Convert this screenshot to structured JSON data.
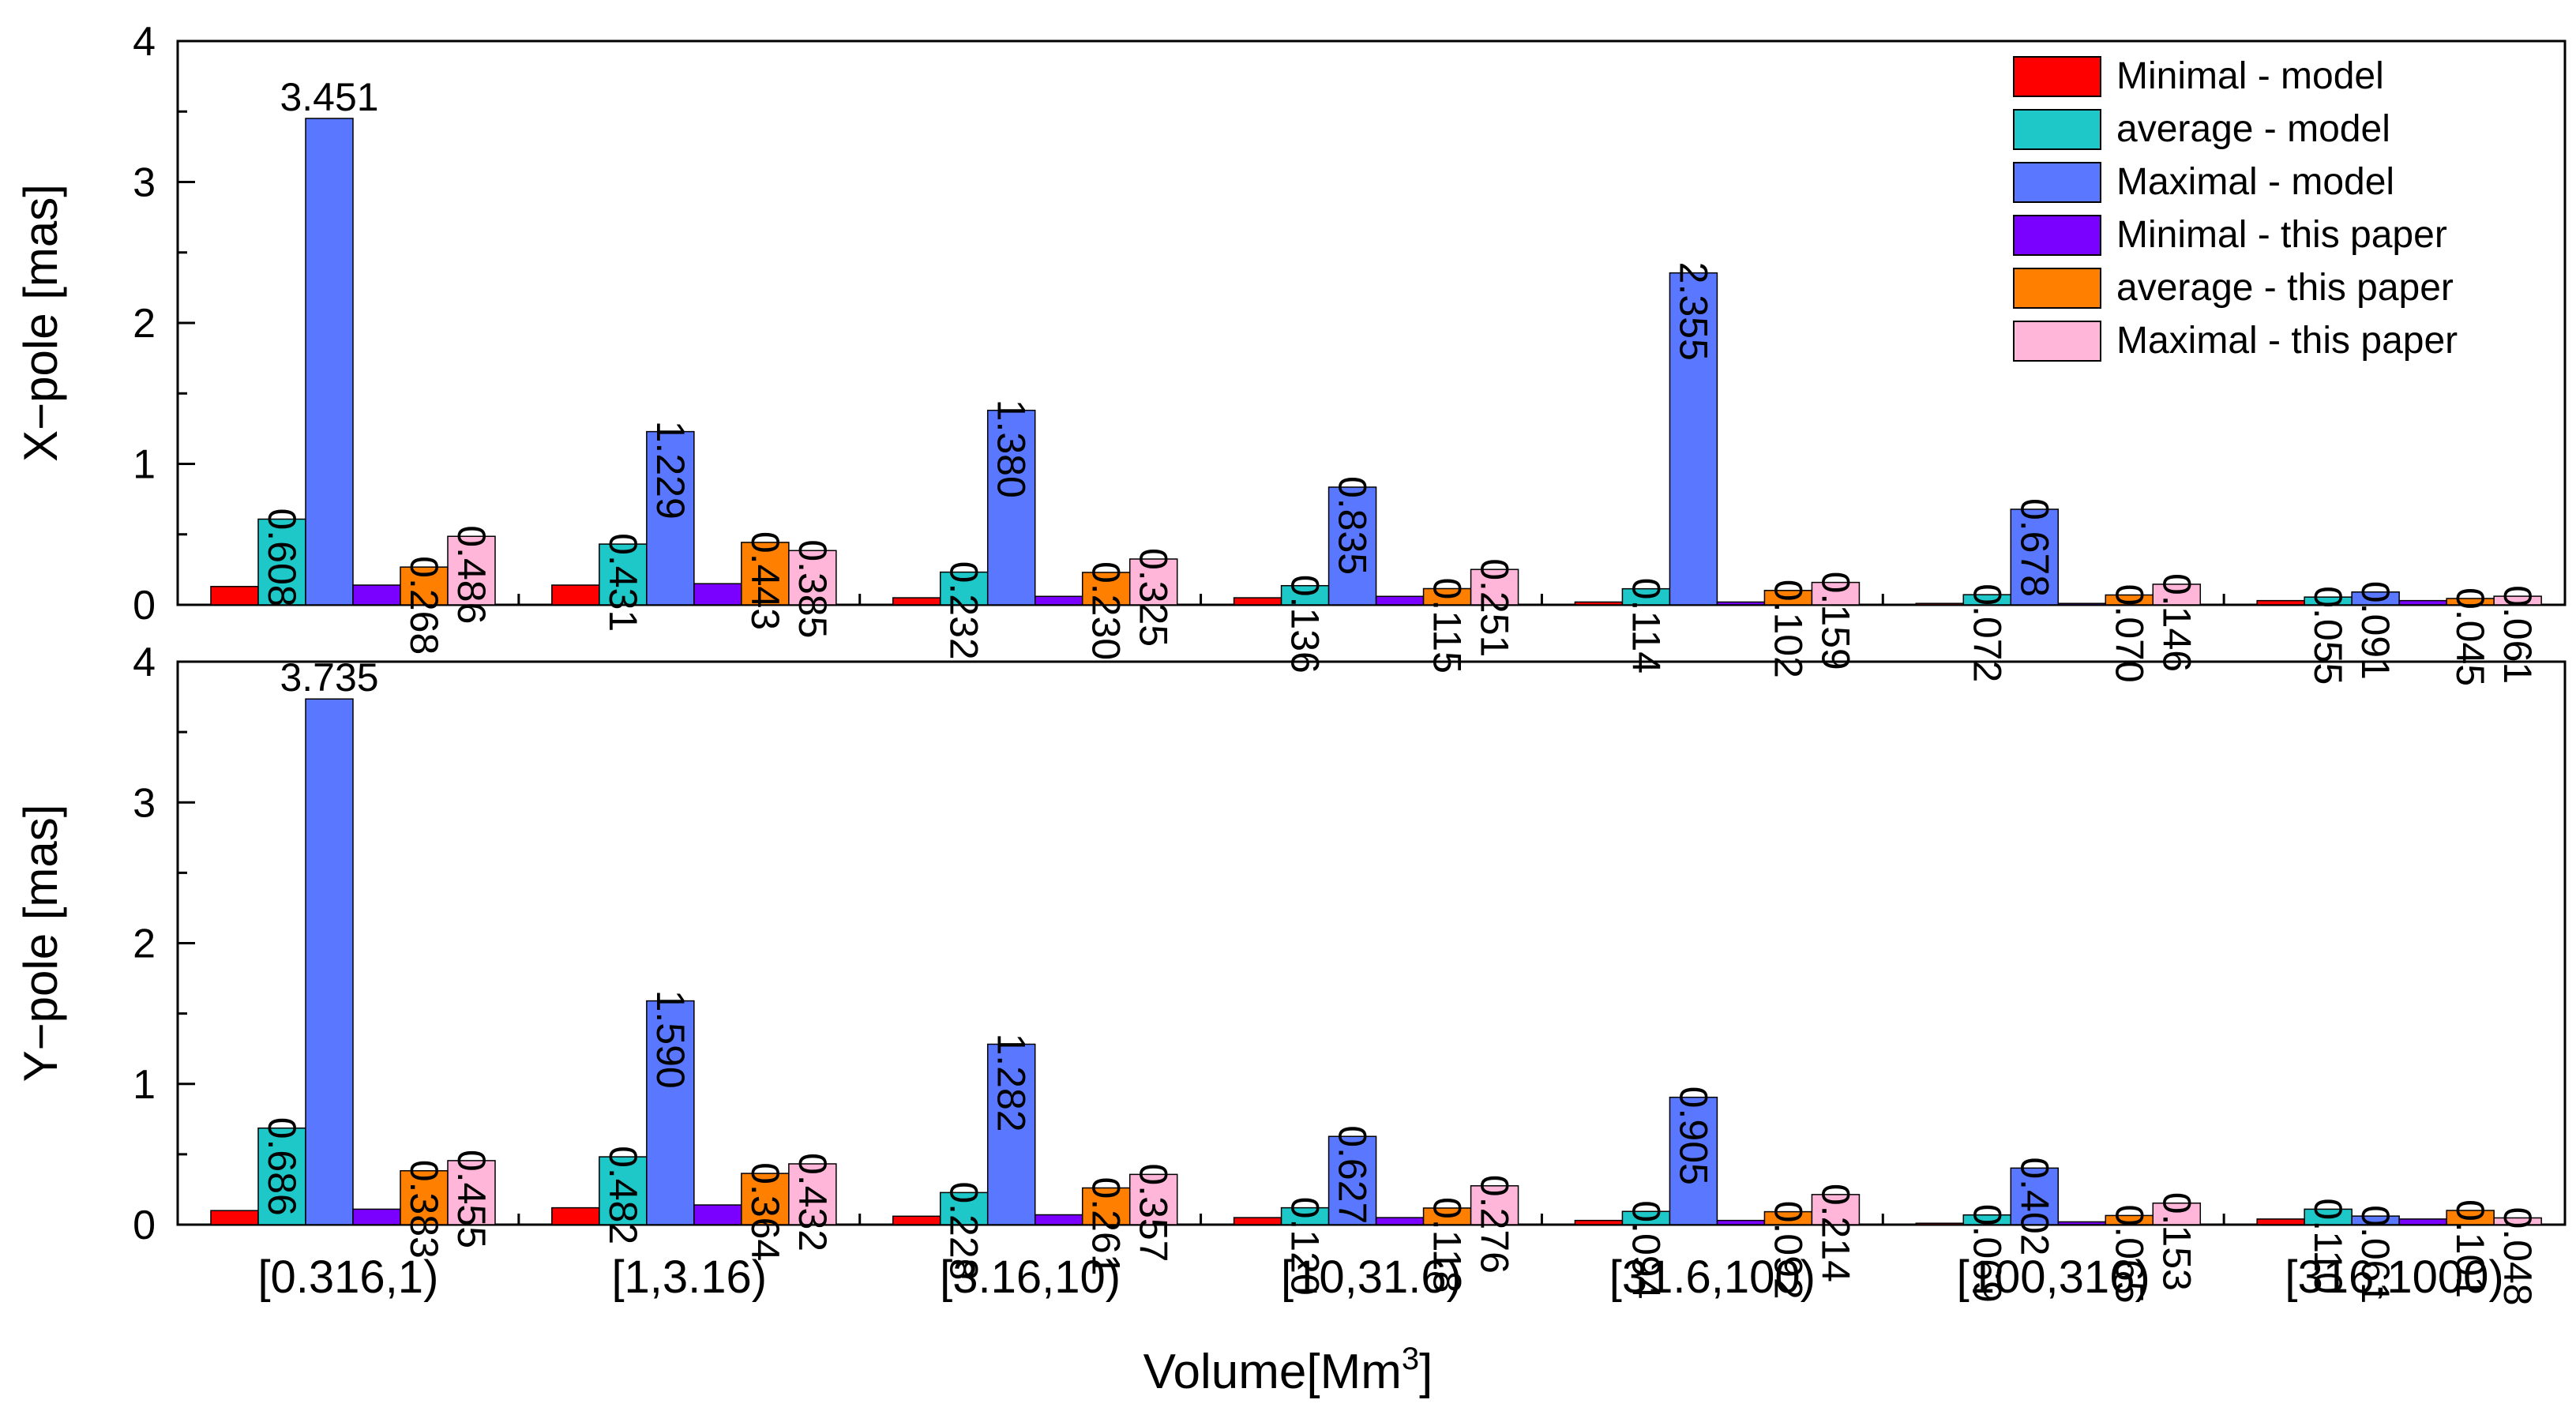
{
  "chart_data": {
    "type": "bar",
    "xlabel": "Volume[Mm",
    "xlabel_sup": "3",
    "xlabel_end": "]",
    "categories": [
      "[0.316,1)",
      "[1,3.16)",
      "[3.16,10)",
      "[10,31.6)",
      "[31.6,100)",
      "[100,316)",
      "[316,1000)"
    ],
    "legend": {
      "placement": "top-right",
      "entries": [
        "Minimal - model",
        "average - model",
        "Maximal - model",
        "Minimal - this paper",
        "average - this paper",
        "Maximal - this paper"
      ],
      "colors": [
        "#ff0000",
        "#1ec8c8",
        "#5a78ff",
        "#7a00ff",
        "#ff8000",
        "#ffb6d8"
      ]
    },
    "panels": [
      {
        "ylabel": "X−pole [mas]",
        "ylim": [
          0,
          4
        ],
        "yticks": [
          "0",
          "1",
          "2",
          "3",
          "4"
        ],
        "series": [
          {
            "name": "Minimal - model",
            "values": [
              0.13,
              0.14,
              0.05,
              0.05,
              0.02,
              0.01,
              0.03
            ]
          },
          {
            "name": "average - model",
            "values": [
              0.608,
              0.431,
              0.232,
              0.136,
              0.114,
              0.072,
              0.055
            ]
          },
          {
            "name": "Maximal - model",
            "values": [
              3.451,
              1.229,
              1.38,
              0.835,
              2.355,
              0.678,
              0.091
            ]
          },
          {
            "name": "Minimal - this paper",
            "values": [
              0.14,
              0.15,
              0.06,
              0.06,
              0.02,
              0.01,
              0.03
            ]
          },
          {
            "name": "average - this paper",
            "values": [
              0.268,
              0.443,
              0.23,
              0.115,
              0.102,
              0.07,
              0.045
            ]
          },
          {
            "name": "Maximal - this paper",
            "values": [
              0.486,
              0.385,
              0.325,
              0.251,
              0.159,
              0.146,
              0.061
            ]
          }
        ],
        "labels": [
          [
            null,
            "0.608",
            "3.451",
            null,
            "0.268",
            "0.486"
          ],
          [
            null,
            "0.431",
            "1.229",
            null,
            "0.443",
            "0.385"
          ],
          [
            null,
            "0.232",
            "1.380",
            null,
            "0.230",
            "0.325"
          ],
          [
            null,
            "0.136",
            "0.835",
            null,
            "0.115",
            "0.251"
          ],
          [
            null,
            "0.114",
            "2.355",
            null,
            "0.102",
            "0.159"
          ],
          [
            null,
            "0.072",
            "0.678",
            null,
            "0.070",
            "0.146"
          ],
          [
            null,
            "0.055",
            "0.091",
            null,
            "0.045",
            "0.061"
          ]
        ]
      },
      {
        "ylabel": "Y−pole [mas]",
        "ylim": [
          0,
          4
        ],
        "yticks": [
          "0",
          "1",
          "2",
          "3",
          "4"
        ],
        "series": [
          {
            "name": "Minimal - model",
            "values": [
              0.1,
              0.12,
              0.06,
              0.05,
              0.03,
              0.01,
              0.04
            ]
          },
          {
            "name": "average - model",
            "values": [
              0.686,
              0.482,
              0.228,
              0.12,
              0.094,
              0.069,
              0.11
            ]
          },
          {
            "name": "Maximal - model",
            "values": [
              3.735,
              1.59,
              1.282,
              0.627,
              0.905,
              0.402,
              0.061
            ]
          },
          {
            "name": "Minimal - this paper",
            "values": [
              0.11,
              0.14,
              0.07,
              0.05,
              0.03,
              0.02,
              0.04
            ]
          },
          {
            "name": "average - this paper",
            "values": [
              0.383,
              0.364,
              0.261,
              0.118,
              0.092,
              0.065,
              0.101
            ]
          },
          {
            "name": "Maximal - this paper",
            "values": [
              0.455,
              0.432,
              0.357,
              0.276,
              0.214,
              0.153,
              0.048
            ]
          }
        ],
        "labels": [
          [
            null,
            "0.686",
            "3.735",
            null,
            "0.383",
            "0.455"
          ],
          [
            null,
            "0.482",
            "1.590",
            null,
            "0.364",
            "0.432"
          ],
          [
            null,
            "0.228",
            "1.282",
            null,
            "0.261",
            "0.357"
          ],
          [
            null,
            "0.120",
            "0.627",
            null,
            "0.118",
            "0.276"
          ],
          [
            null,
            "0.094",
            "0.905",
            null,
            "0.092",
            "0.214"
          ],
          [
            null,
            "0.069",
            "0.402",
            null,
            "0.065",
            "0.153"
          ],
          [
            null,
            "0.110",
            "0.061",
            null,
            "0.101",
            "0.048"
          ]
        ]
      }
    ]
  }
}
